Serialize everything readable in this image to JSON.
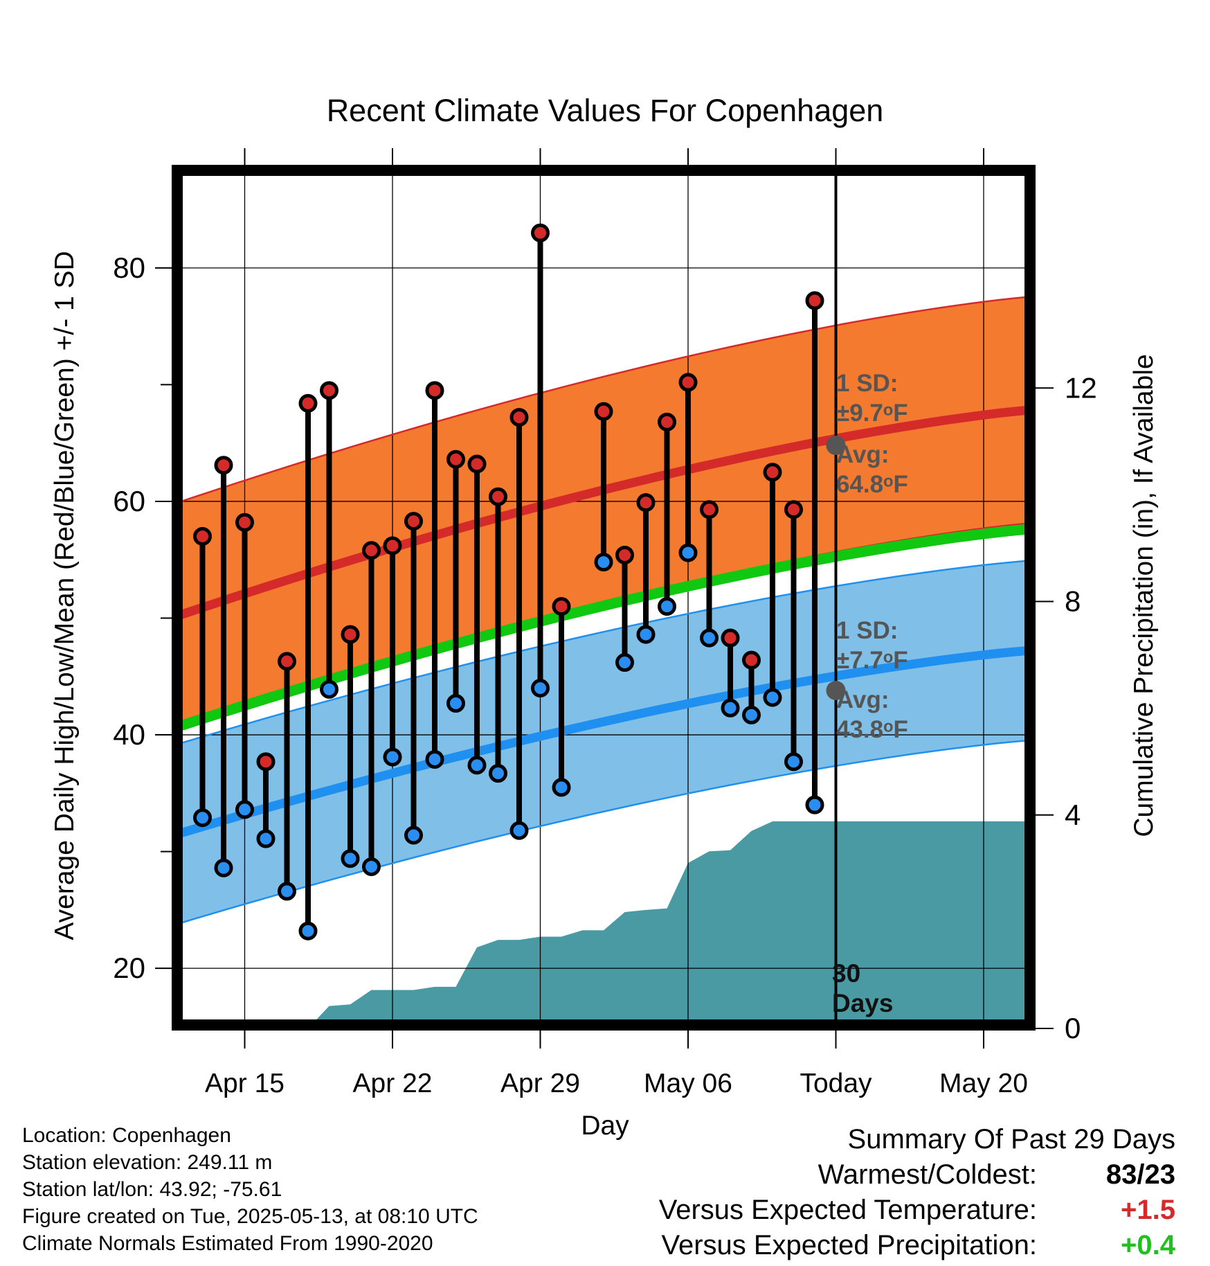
{
  "chart_data": {
    "type": "line",
    "title": "Recent Climate Values For Copenhagen",
    "xlabel": "Day",
    "ylabel_left": "Average Daily High/Low/Mean (Red/Blue/Green) +/- 1 SD",
    "ylabel_right": "Cumulative Precipitation (in), If Available",
    "x_tick_labels": [
      "Apr 15",
      "Apr 22",
      "Apr 29",
      "May 06",
      "Today",
      "May 20"
    ],
    "y_left_range": [
      15.5,
      88
    ],
    "y_left_ticks": [
      20,
      40,
      60,
      80
    ],
    "y_right_range": [
      0,
      16
    ],
    "y_right_ticks": [
      0,
      4,
      8,
      12
    ],
    "x_range_days": [
      "2025-04-12",
      "2025-05-22"
    ],
    "today": "2025-05-13",
    "today_label": "30 Days",
    "normals": {
      "high_avg": {
        "start": 50.3,
        "end": 67.8
      },
      "high_sd": 9.7,
      "mean_avg": {
        "start": 40.8,
        "end": 57.6
      },
      "low_avg": {
        "start": 31.6,
        "end": 47.2
      },
      "low_sd": 7.7
    },
    "annotations": {
      "high_sd_text": "1 SD:",
      "high_sd_value": "±9.7ᵒF",
      "high_avg_text": "Avg:",
      "high_avg_value": "64.8ᵒF",
      "low_sd_text": "1 SD:",
      "low_sd_value": "±7.7ᵒF",
      "low_avg_text": "Avg:",
      "low_avg_value": "43.8ᵒF"
    },
    "series": [
      {
        "name": "High",
        "dates": [
          "2025-04-13",
          "2025-04-14",
          "2025-04-15",
          "2025-04-16",
          "2025-04-17",
          "2025-04-18",
          "2025-04-19",
          "2025-04-20",
          "2025-04-21",
          "2025-04-22",
          "2025-04-23",
          "2025-04-24",
          "2025-04-25",
          "2025-04-26",
          "2025-04-27",
          "2025-04-28",
          "2025-04-29",
          "2025-04-30",
          "2025-05-02",
          "2025-05-03",
          "2025-05-04",
          "2025-05-05",
          "2025-05-06",
          "2025-05-07",
          "2025-05-08",
          "2025-05-09",
          "2025-05-10",
          "2025-05-11",
          "2025-05-12"
        ],
        "values": [
          57,
          63.1,
          58.2,
          37.7,
          46.3,
          68.4,
          69.5,
          48.6,
          55.8,
          56.2,
          58.3,
          69.5,
          63.6,
          63.2,
          60.4,
          67.2,
          83,
          51,
          67.7,
          55.4,
          59.9,
          66.8,
          70.2,
          59.3,
          48.3,
          46.4,
          62.5,
          59.3,
          77.2
        ]
      },
      {
        "name": "Low",
        "dates": [
          "2025-04-13",
          "2025-04-14",
          "2025-04-15",
          "2025-04-16",
          "2025-04-17",
          "2025-04-18",
          "2025-04-19",
          "2025-04-20",
          "2025-04-21",
          "2025-04-22",
          "2025-04-23",
          "2025-04-24",
          "2025-04-25",
          "2025-04-26",
          "2025-04-27",
          "2025-04-28",
          "2025-04-29",
          "2025-04-30",
          "2025-05-02",
          "2025-05-03",
          "2025-05-04",
          "2025-05-05",
          "2025-05-06",
          "2025-05-07",
          "2025-05-08",
          "2025-05-09",
          "2025-05-10",
          "2025-05-11",
          "2025-05-12"
        ],
        "values": [
          32.9,
          28.6,
          33.6,
          31.1,
          26.6,
          23.2,
          43.9,
          29.4,
          28.7,
          38.1,
          31.4,
          37.9,
          42.7,
          37.4,
          36.7,
          31.8,
          44,
          35.5,
          54.8,
          46.2,
          48.6,
          51,
          55.6,
          48.3,
          42.3,
          41.7,
          43.2,
          37.7,
          34
        ]
      },
      {
        "name": "Cumulative Precipitation",
        "dates": [
          "2025-04-18",
          "2025-04-19",
          "2025-04-20",
          "2025-04-21",
          "2025-04-22",
          "2025-04-23",
          "2025-04-24",
          "2025-04-25",
          "2025-04-26",
          "2025-04-27",
          "2025-04-28",
          "2025-04-29",
          "2025-04-30",
          "2025-05-01",
          "2025-05-02",
          "2025-05-03",
          "2025-05-04",
          "2025-05-05",
          "2025-05-06",
          "2025-05-07",
          "2025-05-08",
          "2025-05-09",
          "2025-05-10",
          "2025-05-13",
          "2025-05-22"
        ],
        "values": [
          0,
          0.42,
          0.45,
          0.72,
          0.72,
          0.72,
          0.78,
          0.78,
          1.52,
          1.66,
          1.66,
          1.72,
          1.72,
          1.84,
          1.84,
          2.18,
          2.22,
          2.25,
          3.1,
          3.32,
          3.34,
          3.7,
          3.88,
          3.88,
          3.88
        ]
      }
    ]
  },
  "footer": {
    "location": "Location: Copenhagen",
    "elevation": "Station elevation: 249.11 m",
    "latlon": "Station lat/lon: 43.92; -75.61",
    "created": "Figure created on Tue, 2025-05-13, at 08:10 UTC",
    "normals_note": "Climate Normals Estimated From 1990-2020"
  },
  "summary": {
    "title": "Summary Of Past 29 Days",
    "warmest_label": "Warmest/Coldest:",
    "warmest_value": "83/23",
    "temp_label": "Versus Expected Temperature:",
    "temp_value": "+1.5",
    "precip_label": "Versus Expected Precipitation:",
    "precip_value": "+0.4"
  },
  "colors": {
    "high_band": "#f47a30",
    "high_line": "#d42a2a",
    "low_band": "#80c0e8",
    "low_line": "#2090f0",
    "mean_line": "#10c810",
    "precip_fill": "#4a9aa4",
    "high_marker": "#d42a2a",
    "low_marker": "#2a8ef0",
    "annotation_text": "#555555",
    "temp_value": "#d42a2a",
    "precip_value": "#20c020"
  }
}
